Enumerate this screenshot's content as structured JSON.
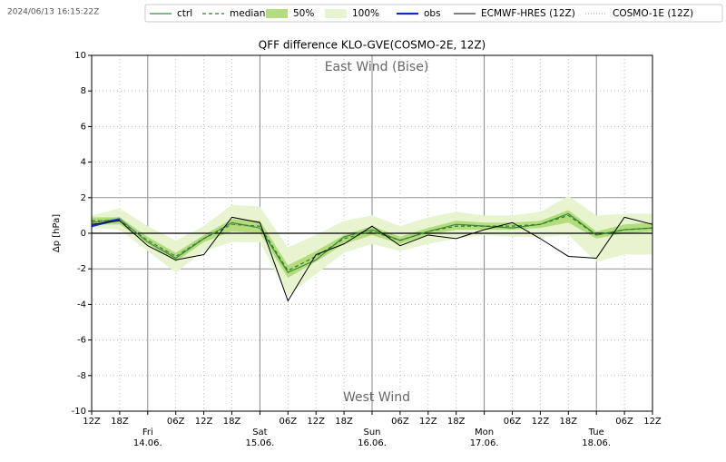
{
  "chart_data": {
    "type": "line",
    "timestamp": "2024/06/13 16:15:22Z",
    "title": "QFF difference KLO-GVE(COSMO-2E, 12Z)",
    "y_label": "Δp [hPa]",
    "annotations": [
      "East Wind (Bise)",
      "West Wind"
    ],
    "categories": [
      "12Z",
      "18Z",
      [
        "Fri",
        "14.06."
      ],
      "06Z",
      "12Z",
      "18Z",
      [
        "Sat",
        "15.06."
      ],
      "06Z",
      "12Z",
      "18Z",
      [
        "Sun",
        "16.06."
      ],
      "06Z",
      "12Z",
      "18Z",
      [
        "Mon",
        "17.06."
      ],
      "06Z",
      "12Z",
      "18Z",
      [
        "Tue",
        "18.06."
      ],
      "06Z",
      "12Z"
    ],
    "ylim": [
      -10,
      10
    ],
    "yticks": [
      -10,
      -8,
      -6,
      -4,
      -2,
      0,
      2,
      4,
      6,
      8,
      10
    ],
    "grid": true,
    "hlines": [
      -2,
      2
    ],
    "zero_line": 0,
    "bands": [
      {
        "name": "100%",
        "color": "#e8f4d0",
        "lower": [
          0.3,
          0.2,
          -1.0,
          -2.2,
          -1.0,
          -0.5,
          -0.5,
          -3.5,
          -2.3,
          -1.1,
          -0.6,
          -1.0,
          -0.6,
          -0.3,
          -0.1,
          -0.2,
          -0.2,
          -0.1,
          -1.6,
          -1.2,
          -1.2
        ],
        "upper": [
          1.0,
          1.4,
          0.4,
          -0.4,
          0.4,
          1.6,
          1.5,
          -0.8,
          -0.1,
          0.7,
          1.0,
          0.4,
          0.9,
          1.2,
          1.0,
          1.0,
          1.2,
          2.1,
          1.0,
          1.1,
          1.1
        ]
      },
      {
        "name": "50%",
        "color": "#b5dc7c",
        "lower": [
          0.5,
          0.5,
          -0.6,
          -1.6,
          -0.5,
          0.1,
          0.0,
          -2.5,
          -1.6,
          -0.6,
          -0.1,
          -0.6,
          -0.1,
          0.2,
          0.2,
          0.2,
          0.3,
          0.6,
          -0.3,
          0.0,
          0.1
        ],
        "upper": [
          0.9,
          0.9,
          -0.2,
          -1.1,
          -0.1,
          0.8,
          0.7,
          -1.8,
          -1.0,
          -0.1,
          0.4,
          -0.2,
          0.3,
          0.7,
          0.6,
          0.6,
          0.7,
          1.3,
          0.1,
          0.5,
          0.6
        ]
      }
    ],
    "series": [
      {
        "name": "ctrl",
        "color": "#3a8a3a",
        "dash": "none",
        "width": 1.2,
        "values": [
          0.6,
          0.8,
          -0.5,
          -1.4,
          -0.3,
          0.6,
          0.3,
          -2.2,
          -1.5,
          -0.2,
          0.2,
          -0.4,
          0.1,
          0.5,
          0.4,
          0.3,
          0.5,
          1.1,
          -0.1,
          0.2,
          0.3
        ]
      },
      {
        "name": "median",
        "color": "#2e7d2e",
        "dash": "4,3",
        "width": 1.2,
        "values": [
          0.7,
          0.7,
          -0.4,
          -1.3,
          -0.3,
          0.5,
          0.4,
          -2.1,
          -1.3,
          -0.3,
          0.1,
          -0.4,
          0.1,
          0.4,
          0.4,
          0.4,
          0.5,
          1.0,
          -0.1,
          0.2,
          0.3
        ]
      },
      {
        "name": "obs",
        "color": "#1030c0",
        "dash": "none",
        "width": 2.2,
        "values": [
          0.4,
          0.8,
          null,
          null,
          null,
          null,
          null,
          null,
          null,
          null,
          null,
          null,
          null,
          null,
          null,
          null,
          null,
          null,
          null,
          null,
          null
        ]
      },
      {
        "name": "ECMWF-HRES (12Z)",
        "color": "#000000",
        "dash": "none",
        "width": 1,
        "values": [
          0.5,
          0.7,
          -0.7,
          -1.5,
          -1.2,
          0.9,
          0.6,
          -3.8,
          -1.2,
          -0.6,
          0.4,
          -0.7,
          -0.1,
          -0.3,
          0.2,
          0.6,
          -0.3,
          -1.3,
          -1.4,
          0.9,
          0.5
        ]
      },
      {
        "name": "COSMO-1E (12Z)",
        "color": "#999999",
        "dash": "1,2",
        "width": 1,
        "values": [
          0.6,
          0.9,
          -0.5,
          -1.3,
          -0.2,
          0.5,
          0.3,
          null,
          null,
          null,
          null,
          null,
          null,
          null,
          null,
          null,
          null,
          null,
          null,
          null,
          null
        ]
      }
    ]
  }
}
